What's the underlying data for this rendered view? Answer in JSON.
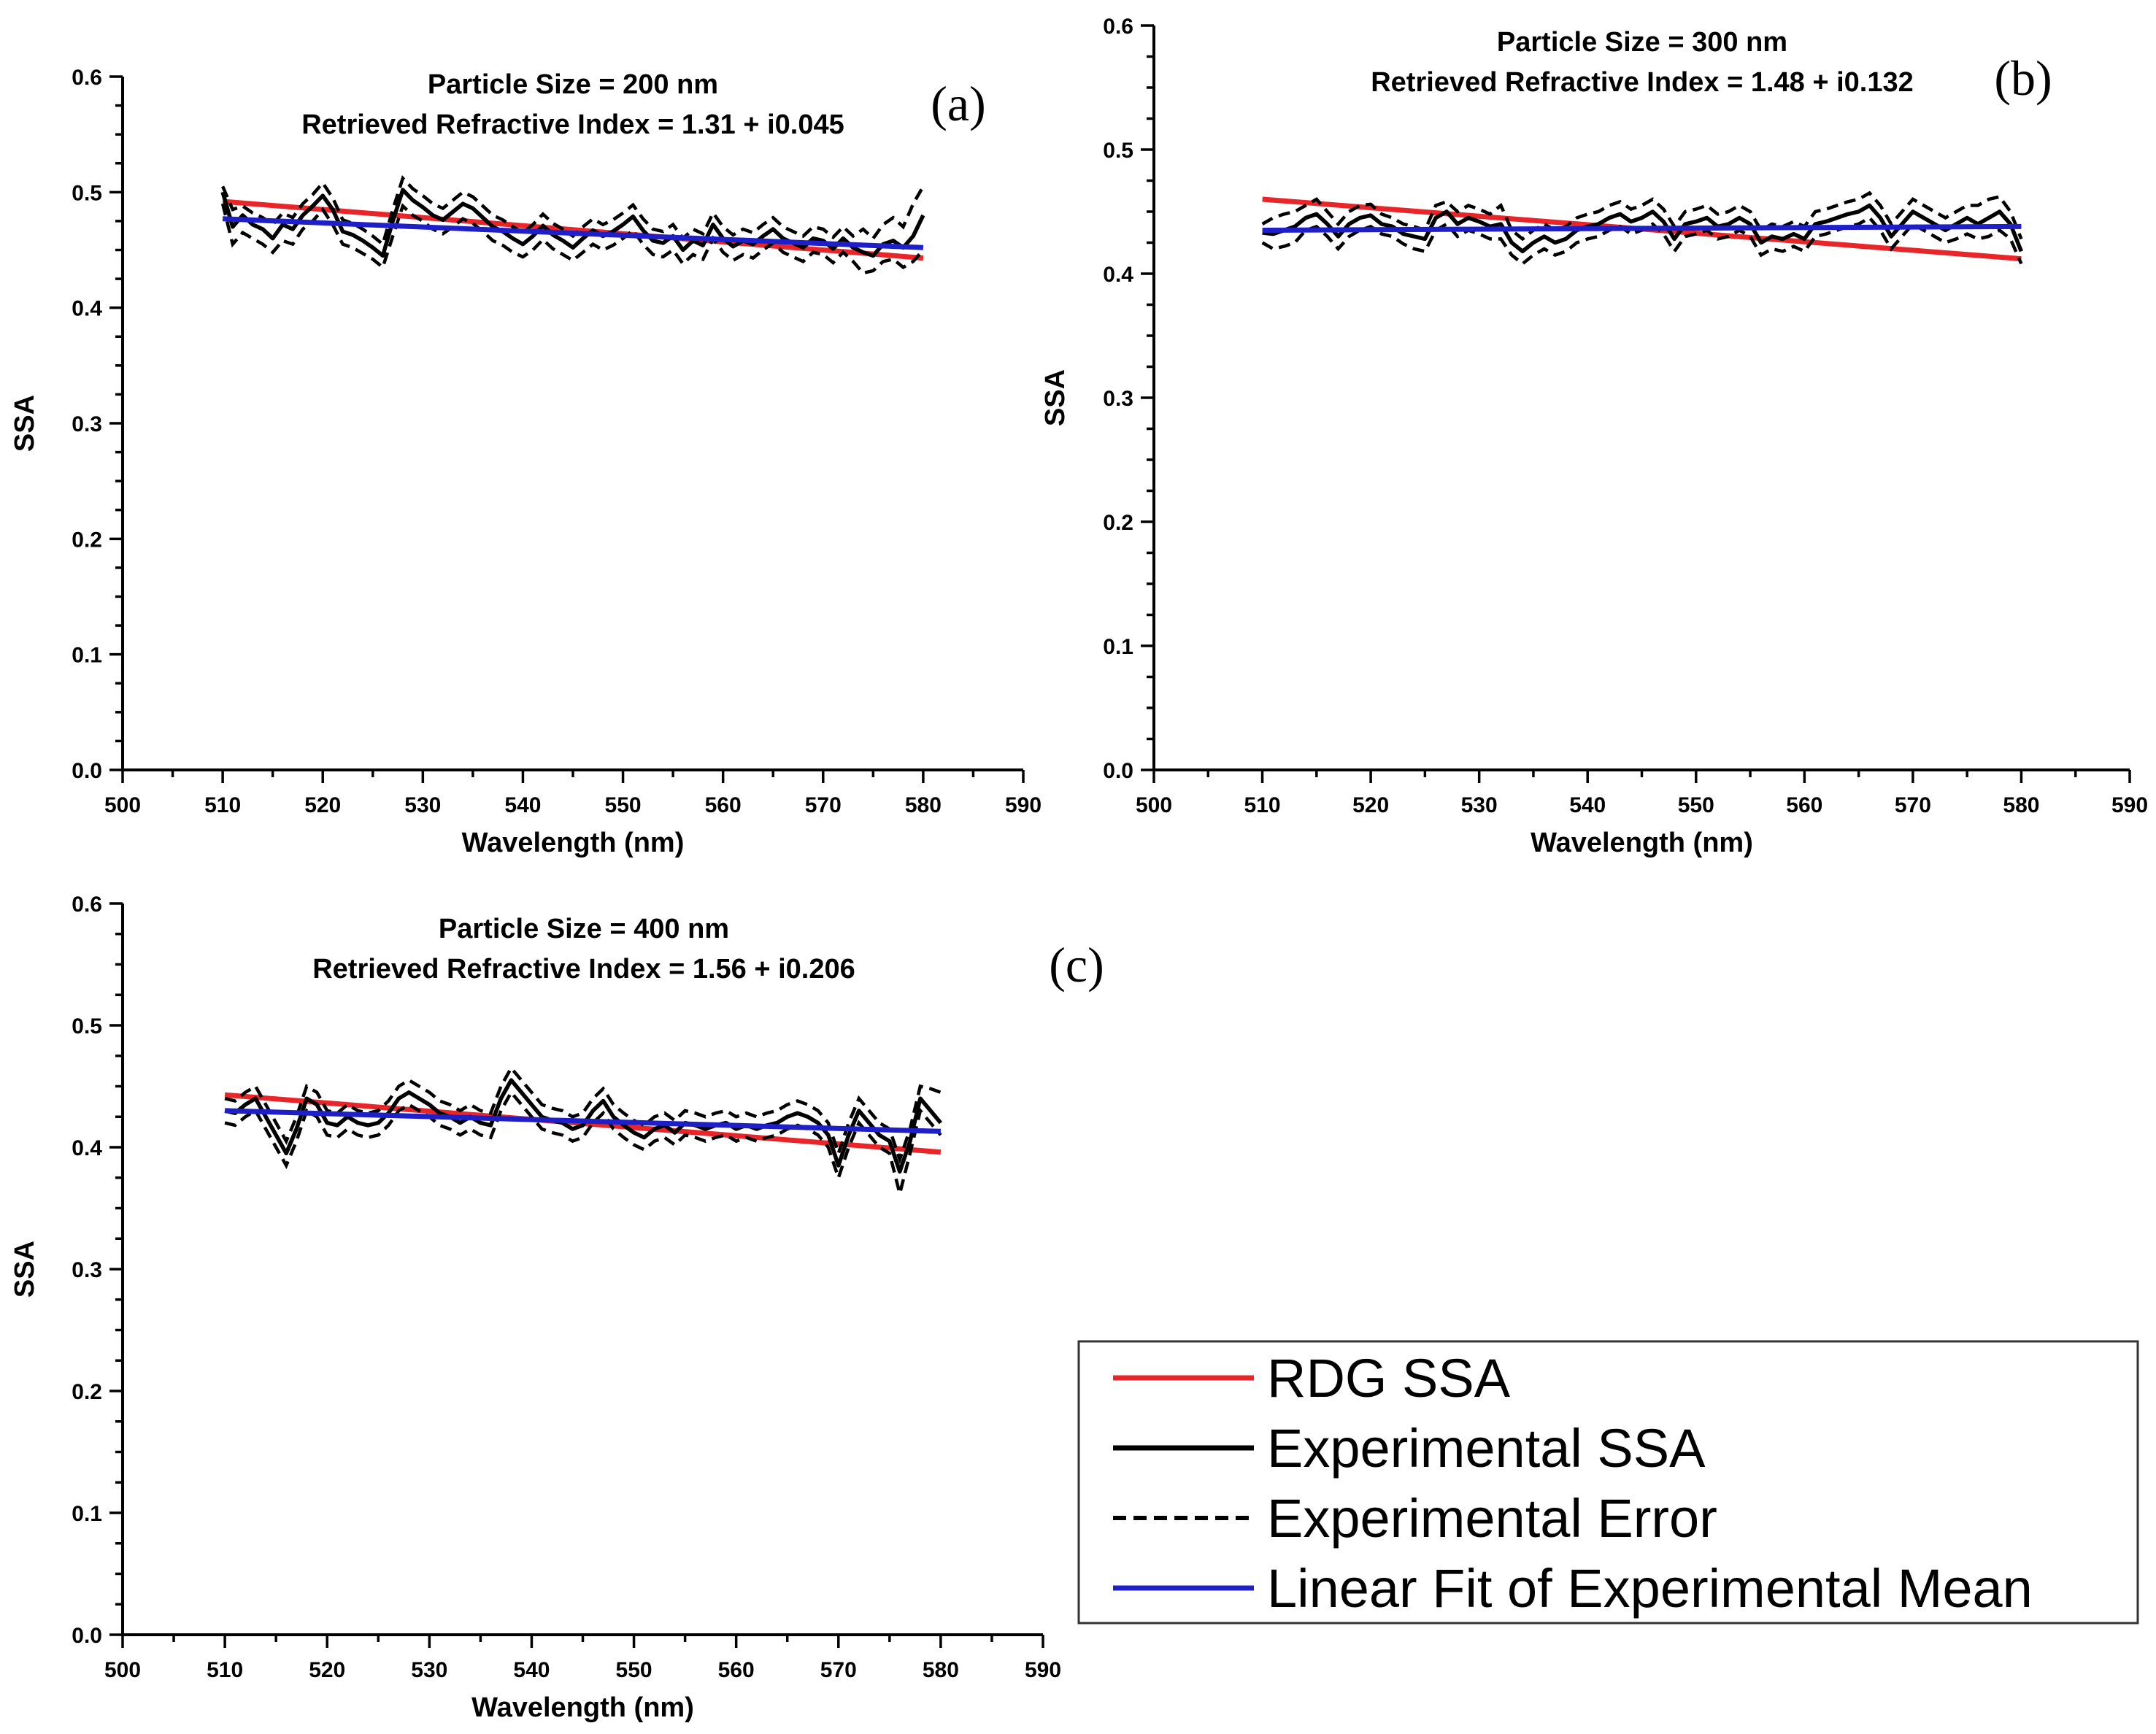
{
  "chart_data": [
    {
      "type": "line",
      "panel_label": "(a)",
      "annotations": [
        "Particle Size = 200 nm",
        "Retrieved Refractive Index = 1.31 + i0.045"
      ],
      "xlabel": "Wavelength (nm)",
      "ylabel": "SSA",
      "xlim": [
        500,
        590
      ],
      "ylim": [
        0.0,
        0.6
      ],
      "x_ticks": [
        "500",
        "510",
        "520",
        "530",
        "540",
        "550",
        "560",
        "570",
        "580",
        "590"
      ],
      "y_ticks": [
        "0.0",
        "0.1",
        "0.2",
        "0.3",
        "0.4",
        "0.5",
        "0.6"
      ],
      "x": [
        510,
        511,
        512,
        513,
        514,
        515,
        516,
        517,
        518,
        519,
        520,
        521,
        522,
        523,
        524,
        525,
        526,
        527,
        528,
        529,
        530,
        531,
        532,
        533,
        534,
        535,
        536,
        537,
        538,
        539,
        540,
        541,
        542,
        543,
        544,
        545,
        546,
        547,
        548,
        549,
        550,
        551,
        552,
        553,
        554,
        555,
        556,
        557,
        558,
        559,
        560,
        561,
        562,
        563,
        564,
        565,
        566,
        567,
        568,
        569,
        570,
        571,
        572,
        573,
        574,
        575,
        576,
        577,
        578,
        579,
        580
      ],
      "series": [
        {
          "name": "RDG SSA",
          "type": "linear",
          "y_start": 0.492,
          "y_end": 0.443
        },
        {
          "name": "Experimental SSA",
          "values": [
            0.5,
            0.47,
            0.48,
            0.472,
            0.468,
            0.46,
            0.472,
            0.468,
            0.48,
            0.488,
            0.497,
            0.485,
            0.466,
            0.463,
            0.458,
            0.452,
            0.445,
            0.475,
            0.502,
            0.493,
            0.487,
            0.48,
            0.476,
            0.483,
            0.49,
            0.486,
            0.478,
            0.47,
            0.466,
            0.46,
            0.455,
            0.462,
            0.471,
            0.463,
            0.458,
            0.452,
            0.46,
            0.467,
            0.462,
            0.466,
            0.472,
            0.479,
            0.467,
            0.458,
            0.456,
            0.462,
            0.45,
            0.458,
            0.454,
            0.472,
            0.46,
            0.453,
            0.458,
            0.455,
            0.462,
            0.468,
            0.46,
            0.456,
            0.452,
            0.46,
            0.458,
            0.451,
            0.46,
            0.452,
            0.448,
            0.445,
            0.455,
            0.458,
            0.452,
            0.462,
            0.48
          ]
        },
        {
          "name": "Experimental Error",
          "upper": [
            0.505,
            0.485,
            0.488,
            0.482,
            0.478,
            0.472,
            0.482,
            0.478,
            0.49,
            0.498,
            0.508,
            0.495,
            0.476,
            0.473,
            0.468,
            0.462,
            0.455,
            0.485,
            0.512,
            0.503,
            0.497,
            0.49,
            0.486,
            0.493,
            0.5,
            0.496,
            0.488,
            0.48,
            0.476,
            0.47,
            0.465,
            0.472,
            0.481,
            0.473,
            0.468,
            0.462,
            0.47,
            0.477,
            0.472,
            0.476,
            0.482,
            0.489,
            0.477,
            0.468,
            0.466,
            0.472,
            0.46,
            0.468,
            0.464,
            0.482,
            0.47,
            0.463,
            0.468,
            0.465,
            0.472,
            0.478,
            0.47,
            0.466,
            0.462,
            0.47,
            0.468,
            0.461,
            0.47,
            0.462,
            0.468,
            0.46,
            0.472,
            0.478,
            0.47,
            0.49,
            0.505
          ],
          "lower": [
            0.49,
            0.455,
            0.465,
            0.46,
            0.455,
            0.448,
            0.458,
            0.455,
            0.468,
            0.475,
            0.485,
            0.472,
            0.455,
            0.452,
            0.447,
            0.442,
            0.435,
            0.462,
            0.488,
            0.48,
            0.475,
            0.468,
            0.464,
            0.47,
            0.477,
            0.473,
            0.466,
            0.458,
            0.454,
            0.448,
            0.444,
            0.45,
            0.459,
            0.451,
            0.446,
            0.441,
            0.448,
            0.455,
            0.45,
            0.454,
            0.46,
            0.467,
            0.455,
            0.446,
            0.444,
            0.45,
            0.438,
            0.446,
            0.442,
            0.46,
            0.448,
            0.441,
            0.446,
            0.443,
            0.45,
            0.456,
            0.448,
            0.444,
            0.44,
            0.448,
            0.446,
            0.439,
            0.448,
            0.44,
            0.43,
            0.432,
            0.44,
            0.442,
            0.435,
            0.44,
            0.45
          ]
        },
        {
          "name": "Linear Fit of Experimental Mean",
          "type": "linear",
          "y_start": 0.477,
          "y_end": 0.452
        }
      ]
    },
    {
      "type": "line",
      "panel_label": "(b)",
      "annotations": [
        "Particle Size = 300 nm",
        "Retrieved Refractive Index = 1.48 + i0.132"
      ],
      "xlabel": "Wavelength (nm)",
      "ylabel": "SSA",
      "xlim": [
        500,
        590
      ],
      "ylim": [
        0.0,
        0.6
      ],
      "x_ticks": [
        "500",
        "510",
        "520",
        "530",
        "540",
        "550",
        "560",
        "570",
        "580",
        "590"
      ],
      "y_ticks": [
        "0.0",
        "0.1",
        "0.2",
        "0.3",
        "0.4",
        "0.5",
        "0.6"
      ],
      "x": [
        510,
        511,
        512,
        513,
        514,
        515,
        516,
        517,
        518,
        519,
        520,
        521,
        522,
        523,
        524,
        525,
        526,
        527,
        528,
        529,
        530,
        531,
        532,
        533,
        534,
        535,
        536,
        537,
        538,
        539,
        540,
        541,
        542,
        543,
        544,
        545,
        546,
        547,
        548,
        549,
        550,
        551,
        552,
        553,
        554,
        555,
        556,
        557,
        558,
        559,
        560,
        561,
        562,
        563,
        564,
        565,
        566,
        567,
        568,
        569,
        570,
        571,
        572,
        573,
        574,
        575,
        576,
        577,
        578,
        579,
        580
      ],
      "series": [
        {
          "name": "RDG SSA",
          "type": "linear",
          "y_start": 0.46,
          "y_end": 0.412
        },
        {
          "name": "Experimental SSA",
          "values": [
            0.433,
            0.432,
            0.435,
            0.438,
            0.445,
            0.448,
            0.44,
            0.43,
            0.44,
            0.445,
            0.447,
            0.44,
            0.438,
            0.432,
            0.43,
            0.428,
            0.445,
            0.45,
            0.44,
            0.445,
            0.442,
            0.438,
            0.44,
            0.425,
            0.418,
            0.425,
            0.43,
            0.425,
            0.428,
            0.435,
            0.438,
            0.44,
            0.445,
            0.448,
            0.442,
            0.445,
            0.45,
            0.442,
            0.428,
            0.44,
            0.442,
            0.445,
            0.438,
            0.44,
            0.445,
            0.44,
            0.425,
            0.43,
            0.428,
            0.432,
            0.428,
            0.44,
            0.442,
            0.445,
            0.448,
            0.45,
            0.455,
            0.445,
            0.43,
            0.44,
            0.45,
            0.445,
            0.44,
            0.435,
            0.44,
            0.445,
            0.44,
            0.445,
            0.45,
            0.44,
            0.418
          ]
        },
        {
          "name": "Experimental Error",
          "upper": [
            0.44,
            0.445,
            0.448,
            0.45,
            0.455,
            0.46,
            0.45,
            0.44,
            0.45,
            0.455,
            0.456,
            0.448,
            0.445,
            0.44,
            0.438,
            0.435,
            0.455,
            0.458,
            0.45,
            0.455,
            0.452,
            0.448,
            0.455,
            0.435,
            0.428,
            0.435,
            0.44,
            0.435,
            0.438,
            0.445,
            0.448,
            0.45,
            0.455,
            0.458,
            0.452,
            0.455,
            0.46,
            0.452,
            0.438,
            0.45,
            0.452,
            0.455,
            0.448,
            0.45,
            0.455,
            0.45,
            0.435,
            0.44,
            0.438,
            0.442,
            0.438,
            0.45,
            0.452,
            0.455,
            0.458,
            0.46,
            0.465,
            0.455,
            0.44,
            0.45,
            0.46,
            0.455,
            0.45,
            0.445,
            0.45,
            0.455,
            0.455,
            0.46,
            0.462,
            0.45,
            0.428
          ],
          "lower": [
            0.425,
            0.42,
            0.422,
            0.425,
            0.435,
            0.438,
            0.43,
            0.42,
            0.43,
            0.435,
            0.438,
            0.432,
            0.43,
            0.424,
            0.42,
            0.418,
            0.435,
            0.44,
            0.43,
            0.435,
            0.432,
            0.428,
            0.428,
            0.415,
            0.408,
            0.415,
            0.42,
            0.415,
            0.418,
            0.425,
            0.428,
            0.43,
            0.435,
            0.438,
            0.432,
            0.435,
            0.44,
            0.432,
            0.418,
            0.43,
            0.432,
            0.435,
            0.428,
            0.43,
            0.435,
            0.43,
            0.415,
            0.42,
            0.418,
            0.422,
            0.418,
            0.43,
            0.432,
            0.435,
            0.438,
            0.44,
            0.445,
            0.435,
            0.42,
            0.43,
            0.44,
            0.435,
            0.43,
            0.425,
            0.428,
            0.432,
            0.428,
            0.43,
            0.435,
            0.428,
            0.408
          ]
        },
        {
          "name": "Linear Fit of Experimental Mean",
          "type": "linear",
          "y_start": 0.435,
          "y_end": 0.438
        }
      ]
    },
    {
      "type": "line",
      "panel_label": "(c)",
      "annotations": [
        "Particle Size = 400 nm",
        "Retrieved Refractive Index = 1.56 + i0.206"
      ],
      "xlabel": "Wavelength (nm)",
      "ylabel": "SSA",
      "xlim": [
        500,
        590
      ],
      "ylim": [
        0.0,
        0.6
      ],
      "x_ticks": [
        "500",
        "510",
        "520",
        "530",
        "540",
        "550",
        "560",
        "570",
        "580",
        "590"
      ],
      "y_ticks": [
        "0.0",
        "0.1",
        "0.2",
        "0.3",
        "0.4",
        "0.5",
        "0.6"
      ],
      "x": [
        510,
        511,
        512,
        513,
        514,
        515,
        516,
        517,
        518,
        519,
        520,
        521,
        522,
        523,
        524,
        525,
        526,
        527,
        528,
        529,
        530,
        531,
        532,
        533,
        534,
        535,
        536,
        537,
        538,
        539,
        540,
        541,
        542,
        543,
        544,
        545,
        546,
        547,
        548,
        549,
        550,
        551,
        552,
        553,
        554,
        555,
        556,
        557,
        558,
        559,
        560,
        561,
        562,
        563,
        564,
        565,
        566,
        567,
        568,
        569,
        570,
        571,
        572,
        573,
        574,
        575,
        576,
        577,
        578,
        579,
        580
      ],
      "series": [
        {
          "name": "RDG SSA",
          "type": "linear",
          "y_start": 0.443,
          "y_end": 0.396
        },
        {
          "name": "Experimental SSA",
          "values": [
            0.43,
            0.428,
            0.435,
            0.44,
            0.425,
            0.41,
            0.395,
            0.415,
            0.44,
            0.435,
            0.42,
            0.418,
            0.425,
            0.42,
            0.418,
            0.42,
            0.428,
            0.44,
            0.445,
            0.44,
            0.435,
            0.428,
            0.425,
            0.42,
            0.425,
            0.42,
            0.418,
            0.44,
            0.455,
            0.445,
            0.435,
            0.425,
            0.422,
            0.42,
            0.415,
            0.418,
            0.43,
            0.438,
            0.425,
            0.418,
            0.412,
            0.408,
            0.415,
            0.418,
            0.412,
            0.42,
            0.418,
            0.415,
            0.418,
            0.42,
            0.415,
            0.418,
            0.415,
            0.418,
            0.42,
            0.425,
            0.428,
            0.425,
            0.42,
            0.41,
            0.385,
            0.41,
            0.43,
            0.42,
            0.41,
            0.405,
            0.38,
            0.405,
            0.44,
            0.43,
            0.42
          ]
        },
        {
          "name": "Experimental Error",
          "upper": [
            0.44,
            0.438,
            0.445,
            0.45,
            0.435,
            0.42,
            0.405,
            0.425,
            0.45,
            0.445,
            0.43,
            0.428,
            0.435,
            0.43,
            0.428,
            0.43,
            0.438,
            0.45,
            0.455,
            0.45,
            0.445,
            0.438,
            0.435,
            0.43,
            0.435,
            0.43,
            0.428,
            0.45,
            0.465,
            0.455,
            0.445,
            0.435,
            0.432,
            0.43,
            0.425,
            0.428,
            0.44,
            0.448,
            0.435,
            0.428,
            0.422,
            0.418,
            0.425,
            0.428,
            0.422,
            0.43,
            0.428,
            0.425,
            0.428,
            0.43,
            0.425,
            0.428,
            0.425,
            0.428,
            0.43,
            0.435,
            0.438,
            0.435,
            0.43,
            0.42,
            0.395,
            0.42,
            0.44,
            0.43,
            0.42,
            0.415,
            0.39,
            0.415,
            0.45,
            0.448,
            0.445
          ],
          "lower": [
            0.42,
            0.418,
            0.425,
            0.43,
            0.415,
            0.4,
            0.385,
            0.405,
            0.43,
            0.425,
            0.41,
            0.408,
            0.415,
            0.41,
            0.408,
            0.41,
            0.418,
            0.43,
            0.435,
            0.43,
            0.425,
            0.418,
            0.415,
            0.41,
            0.415,
            0.41,
            0.408,
            0.43,
            0.445,
            0.435,
            0.425,
            0.415,
            0.412,
            0.41,
            0.405,
            0.408,
            0.42,
            0.428,
            0.415,
            0.408,
            0.402,
            0.398,
            0.405,
            0.408,
            0.402,
            0.41,
            0.408,
            0.405,
            0.408,
            0.41,
            0.405,
            0.408,
            0.405,
            0.408,
            0.41,
            0.415,
            0.418,
            0.415,
            0.41,
            0.4,
            0.375,
            0.4,
            0.42,
            0.41,
            0.4,
            0.395,
            0.362,
            0.395,
            0.43,
            0.42,
            0.41
          ]
        },
        {
          "name": "Linear Fit of Experimental Mean",
          "type": "linear",
          "y_start": 0.43,
          "y_end": 0.413
        }
      ]
    }
  ],
  "legend": {
    "placement": "bottom-right",
    "items": [
      {
        "label": "RDG SSA",
        "color": "#e8262a",
        "style": "solid"
      },
      {
        "label": "Experimental SSA",
        "color": "#000000",
        "style": "solid"
      },
      {
        "label": "Experimental Error",
        "color": "#000000",
        "style": "dashed"
      },
      {
        "label": "Linear Fit of Experimental Mean",
        "color": "#1f1fc8",
        "style": "solid"
      }
    ]
  },
  "colors": {
    "rdg": "#e8262a",
    "experimental": "#000000",
    "fit": "#1f1fc8"
  }
}
